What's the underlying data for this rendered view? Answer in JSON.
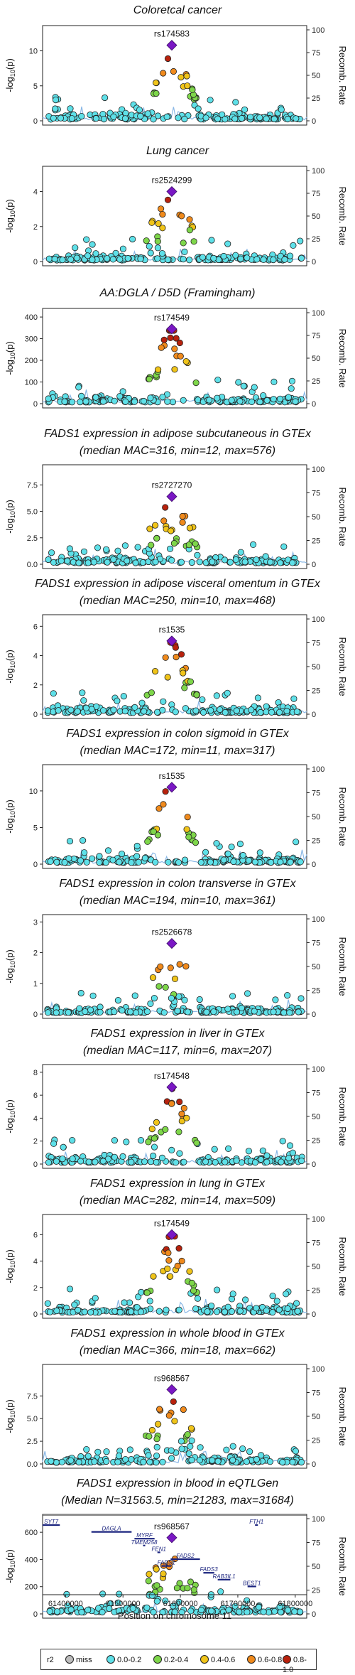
{
  "panels": [
    {
      "title": [
        "Coloretcal cancer"
      ],
      "lead": "rs174583",
      "yticks": [
        0,
        5,
        10
      ],
      "ymax": 13,
      "peak": 10.8,
      "seed": 11,
      "shape": "a"
    },
    {
      "title": [
        "Lung cancer"
      ],
      "lead": "rs2524299",
      "yticks": [
        0,
        2,
        4
      ],
      "ymax": 5.2,
      "peak": 4.0,
      "seed": 22,
      "shape": "b"
    },
    {
      "title": [
        "AA:DGLA / D5D (Framingham)"
      ],
      "lead": "rs174549",
      "yticks": [
        0,
        100,
        200,
        300,
        400
      ],
      "ymax": 420,
      "peak": 345,
      "seed": 33,
      "shape": "a"
    },
    {
      "title": [
        "FADS1 expression in adipose subcutaneous in GTEx",
        "(median MAC=316, min=12, max=576)"
      ],
      "lead": "rs2727270",
      "yticks": [
        0.0,
        2.5,
        5.0,
        7.5
      ],
      "ymax": 9,
      "peak": 6.4,
      "seed": 44,
      "shape": "c"
    },
    {
      "title": [
        "FADS1 expression in adipose visceral omentum in GTEx",
        "(median MAC=250, min=10, max=468)"
      ],
      "lead": "rs1535",
      "yticks": [
        0,
        2,
        4,
        6
      ],
      "ymax": 6.5,
      "peak": 5.0,
      "seed": 55,
      "shape": "a"
    },
    {
      "title": [
        "FADS1 expression in colon sigmoid in GTEx",
        "(median MAC=172, min=11, max=317)"
      ],
      "lead": "rs1535",
      "yticks": [
        0,
        5,
        10
      ],
      "ymax": 13,
      "peak": 10.5,
      "seed": 66,
      "shape": "a"
    },
    {
      "title": [
        "FADS1 expression in colon transverse in GTEx",
        "(median MAC=194, min=10, max=361)"
      ],
      "lead": "rs2526678",
      "yticks": [
        0,
        1,
        2,
        3
      ],
      "ymax": 3.1,
      "peak": 2.3,
      "seed": 77,
      "shape": "d"
    },
    {
      "title": [
        "FADS1 expression in liver in GTEx",
        "(median MAC=117, min=6, max=207)"
      ],
      "lead": "rs174548",
      "yticks": [
        0,
        2,
        4,
        6,
        8
      ],
      "ymax": 8.3,
      "peak": 6.7,
      "seed": 88,
      "shape": "a"
    },
    {
      "title": [
        "FADS1 expression in lung in GTEx",
        "(median MAC=282, min=14, max=509)"
      ],
      "lead": "rs174549",
      "yticks": [
        0,
        2,
        4,
        6
      ],
      "ymax": 7.2,
      "peak": 6.0,
      "seed": 99,
      "shape": "a"
    },
    {
      "title": [
        "FADS1 expression in whole blood in GTEx",
        "(median MAC=366, min=18, max=662)"
      ],
      "lead": "rs968567",
      "yticks": [
        0.0,
        2.5,
        5.0,
        7.5
      ],
      "ymax": 10.5,
      "peak": 8.2,
      "seed": 111,
      "shape": "b"
    },
    {
      "title": [
        "FADS1 expression in blood in eQTLGen",
        "(Median N=31563.5, min=21283, max=31684)"
      ],
      "lead": "rs968567",
      "yticks": [
        0,
        200,
        400,
        600
      ],
      "ymax": 700,
      "peak": 560,
      "seed": 122,
      "shape": "b"
    }
  ],
  "axis": {
    "ylabel": "-log10(p)",
    "ylabel_main": "-log",
    "ylabel_sub": "10",
    "ylabel_tail": "(p)",
    "y2label": "Recomb. Rate",
    "y2ticks": [
      0,
      25,
      50,
      75,
      100
    ],
    "xlabel": "Position on chromosome 11",
    "xticks": [
      61400000,
      61500000,
      61600000,
      61700000,
      61800000
    ],
    "xmin": 61360000,
    "xmax": 61820000,
    "lead_pos": 61585000
  },
  "genes": [
    {
      "name": "SYT7",
      "start": 61360000,
      "end": 61390000,
      "row": 0
    },
    {
      "name": "FTH1",
      "start": 61730000,
      "end": 61735000,
      "row": 0
    },
    {
      "name": "DAGLA",
      "start": 61445000,
      "end": 61515000,
      "row": 1
    },
    {
      "name": "MYRF",
      "start": 61520000,
      "end": 61555000,
      "row": 2
    },
    {
      "name": "TMEM258",
      "start": 61535000,
      "end": 61538000,
      "row": 3
    },
    {
      "name": "FEN1",
      "start": 61560000,
      "end": 61565000,
      "row": 4
    },
    {
      "name": "FADS2",
      "start": 61583000,
      "end": 61634000,
      "row": 5
    },
    {
      "name": "FADS1",
      "start": 61567000,
      "end": 61584000,
      "row": 6
    },
    {
      "name": "FADS3",
      "start": 61640000,
      "end": 61659000,
      "row": 7
    },
    {
      "name": "RAB3IL1",
      "start": 61665000,
      "end": 61687000,
      "row": 8
    },
    {
      "name": "BEST1",
      "start": 61717000,
      "end": 61732000,
      "row": 9
    }
  ],
  "legend": {
    "title": "r2",
    "items": [
      {
        "label": "miss",
        "color": "#bdbdbd"
      },
      {
        "label": "0.0-0.2",
        "color": "#5ee0e8"
      },
      {
        "label": "0.2-0.4",
        "color": "#7ed64a"
      },
      {
        "label": "0.4-0.6",
        "color": "#f0c419"
      },
      {
        "label": "0.6-0.8",
        "color": "#f08a1c"
      },
      {
        "label": "0.8-1.0",
        "color": "#b8220d"
      }
    ]
  },
  "colors": {
    "lead": "#7a17c4",
    "recomb": "#8ab8e6"
  }
}
